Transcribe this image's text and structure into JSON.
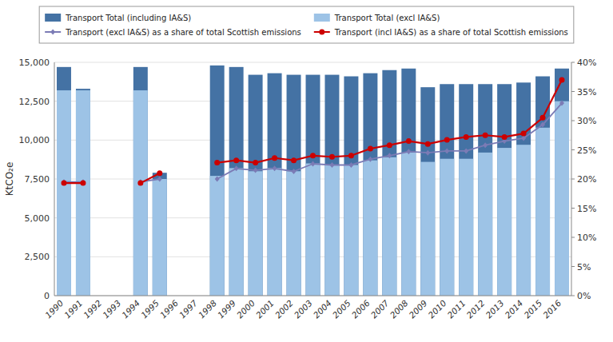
{
  "chart_data": {
    "type": "bar",
    "categories": [
      "1990",
      "1991",
      "1992",
      "1993",
      "1994",
      "1995",
      "1996",
      "1997",
      "1998",
      "1999",
      "2000",
      "2001",
      "2002",
      "2003",
      "2004",
      "2005",
      "2006",
      "2007",
      "2008",
      "2009",
      "2010",
      "2011",
      "2012",
      "2013",
      "2014",
      "2015",
      "2016"
    ],
    "series": [
      {
        "name": "Transport Total (including IA&S)",
        "type": "bar",
        "color": "#4472A4",
        "values": [
          14700,
          13300,
          null,
          null,
          14700,
          7900,
          null,
          null,
          14800,
          14700,
          14200,
          14300,
          14200,
          14200,
          14200,
          14100,
          14300,
          14500,
          14600,
          13400,
          13600,
          13600,
          13600,
          13600,
          13700,
          14100,
          14600
        ]
      },
      {
        "name": "Transport Total (excl IA&S)",
        "type": "bar",
        "color": "#9DC3E6",
        "values": [
          13200,
          13200,
          null,
          null,
          13200,
          7500,
          null,
          null,
          7700,
          8200,
          8000,
          8200,
          8000,
          8500,
          8400,
          8400,
          8700,
          8900,
          9200,
          8600,
          8800,
          8800,
          9200,
          9500,
          9700,
          10800,
          12500
        ]
      },
      {
        "name": "Transport (excl IA&S) as a share of total Scottish emissions",
        "type": "line",
        "axis": "y2",
        "color": "#7B7BB5",
        "marker": "diamond",
        "values": [
          0.195,
          0.195,
          null,
          null,
          0.195,
          0.2,
          null,
          null,
          0.2,
          0.218,
          0.215,
          0.218,
          0.213,
          0.226,
          0.224,
          0.224,
          0.234,
          0.24,
          0.247,
          0.245,
          0.248,
          0.248,
          0.258,
          0.265,
          0.27,
          0.293,
          0.33
        ]
      },
      {
        "name": "Transport (incl IA&S) as a share of total Scottish emissions",
        "type": "line",
        "axis": "y2",
        "color": "#CC0000",
        "marker": "circle",
        "values": [
          0.193,
          0.193,
          null,
          null,
          0.193,
          0.21,
          null,
          null,
          0.228,
          0.232,
          0.228,
          0.236,
          0.232,
          0.24,
          0.238,
          0.24,
          0.252,
          0.258,
          0.265,
          0.26,
          0.267,
          0.272,
          0.275,
          0.272,
          0.278,
          0.305,
          0.37
        ]
      }
    ],
    "y_label": "KtCO₂e",
    "ylim": [
      0,
      15000
    ],
    "yticks": [
      0,
      {
        "value": 2500,
        "label": "2,500"
      },
      {
        "value": 5000,
        "label": "5,000"
      },
      {
        "value": 7500,
        "label": "7,500"
      },
      {
        "value": 10000,
        "label": "10,000"
      },
      {
        "value": 12500,
        "label": "12,500"
      },
      {
        "value": 15000,
        "label": "15,000"
      }
    ],
    "y2lim": [
      0,
      0.4
    ],
    "y2ticks": [
      {
        "value": 0.0,
        "label": "0%"
      },
      {
        "value": 0.05,
        "label": "5%"
      },
      {
        "value": 0.1,
        "label": "10%"
      },
      {
        "value": 0.15,
        "label": "15%"
      },
      {
        "value": 0.2,
        "label": "20%"
      },
      {
        "value": 0.25,
        "label": "25%"
      },
      {
        "value": 0.3,
        "label": "30%"
      },
      {
        "value": 0.35,
        "label": "35%"
      },
      {
        "value": 0.4,
        "label": "40%"
      }
    ],
    "grid": true,
    "legend": "top",
    "stacked": false
  }
}
